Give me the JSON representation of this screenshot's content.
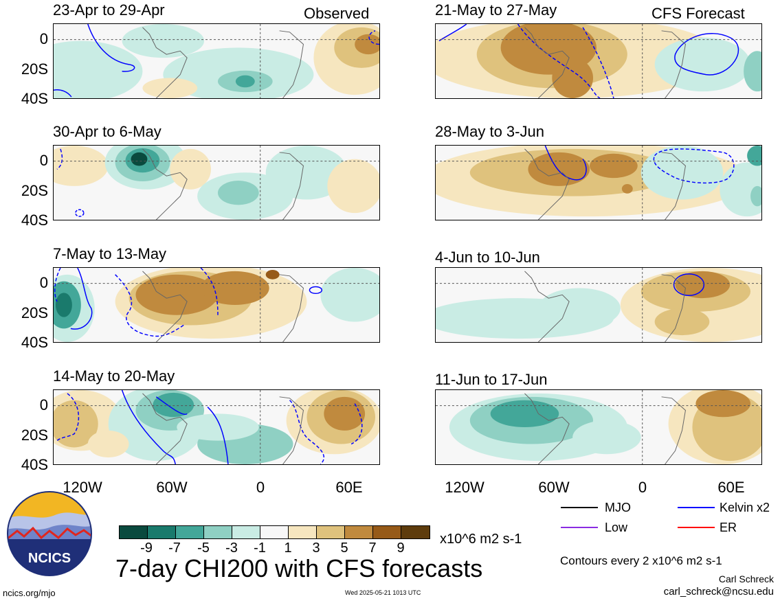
{
  "corner_labels": {
    "left": "Observed",
    "right": "CFS Forecast"
  },
  "panels": [
    {
      "title": "23-Apr to 29-Apr",
      "col": 0,
      "row": 0
    },
    {
      "title": "30-Apr to 6-May",
      "col": 0,
      "row": 1
    },
    {
      "title": "7-May to 13-May",
      "col": 0,
      "row": 2
    },
    {
      "title": "14-May to 20-May",
      "col": 0,
      "row": 3
    },
    {
      "title": "21-May to 27-May",
      "col": 1,
      "row": 0
    },
    {
      "title": "28-May to 3-Jun",
      "col": 1,
      "row": 1
    },
    {
      "title": "4-Jun to 10-Jun",
      "col": 1,
      "row": 2
    },
    {
      "title": "11-Jun to 17-Jun",
      "col": 1,
      "row": 3
    }
  ],
  "y_ticks": [
    "0",
    "20S",
    "40S"
  ],
  "x_ticks": [
    "120W",
    "60W",
    "0",
    "60E"
  ],
  "colorbar": {
    "colors": [
      "#0a4a3e",
      "#1a7a6c",
      "#43a799",
      "#8fd0c3",
      "#c9ece4",
      "#f7f7f7",
      "#f6e6bf",
      "#dfc27d",
      "#c08a3e",
      "#965a18",
      "#5e3c0d"
    ],
    "labels": [
      "-9",
      "-7",
      "-5",
      "-3",
      "-1",
      "1",
      "3",
      "5",
      "7",
      "9"
    ],
    "units": "x10^6 m2 s-1"
  },
  "title": "7-day CHI200 with CFS forecasts",
  "legend": [
    {
      "label": "MJO",
      "color": "#000000"
    },
    {
      "label": "Kelvin x2",
      "color": "#0000ff"
    },
    {
      "label": "Low",
      "color": "#8a2be2"
    },
    {
      "label": "ER",
      "color": "#ff0000"
    }
  ],
  "contour_note": "Contours every 2 x10^6 m2 s-1",
  "author": "Carl Schreck",
  "email": "carl_schreck@ncsu.edu",
  "website": "ncics.org/mjo",
  "timestamp": "Wed 2025-05-21 1013 UTC",
  "logo_text": "NCICS"
}
